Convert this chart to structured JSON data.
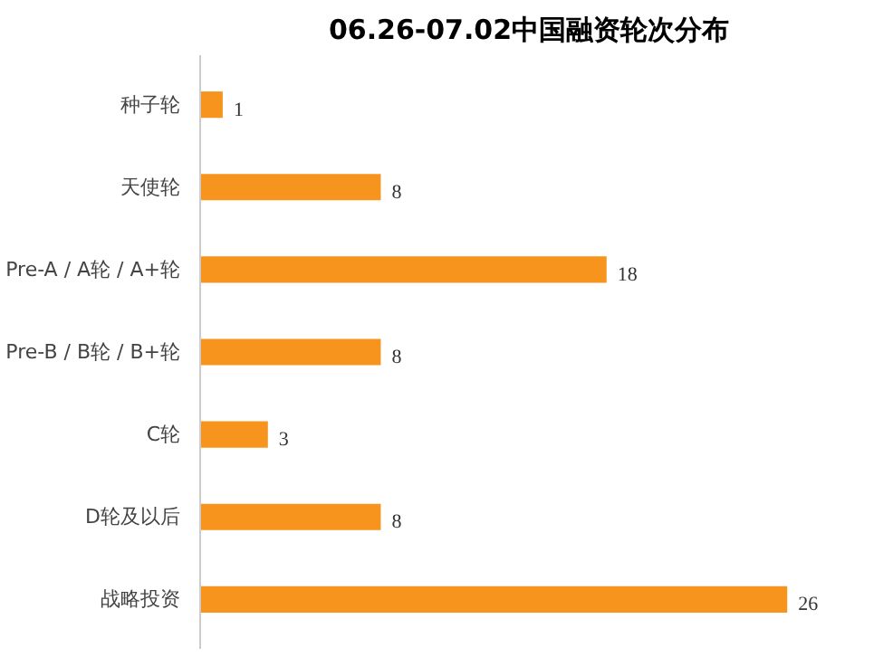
{
  "chart_data": {
    "type": "bar",
    "orientation": "horizontal",
    "title": "06.26-07.02中国融资轮次分布",
    "categories": [
      "种子轮",
      "天使轮",
      "Pre-A / A轮 / A+轮",
      "Pre-B / B轮 / B+轮",
      "C轮",
      "D轮及以后",
      "战略投资"
    ],
    "values": [
      1,
      8,
      18,
      8,
      3,
      8,
      26
    ],
    "color": "#f7941d",
    "data_labels": true,
    "grid": false
  }
}
